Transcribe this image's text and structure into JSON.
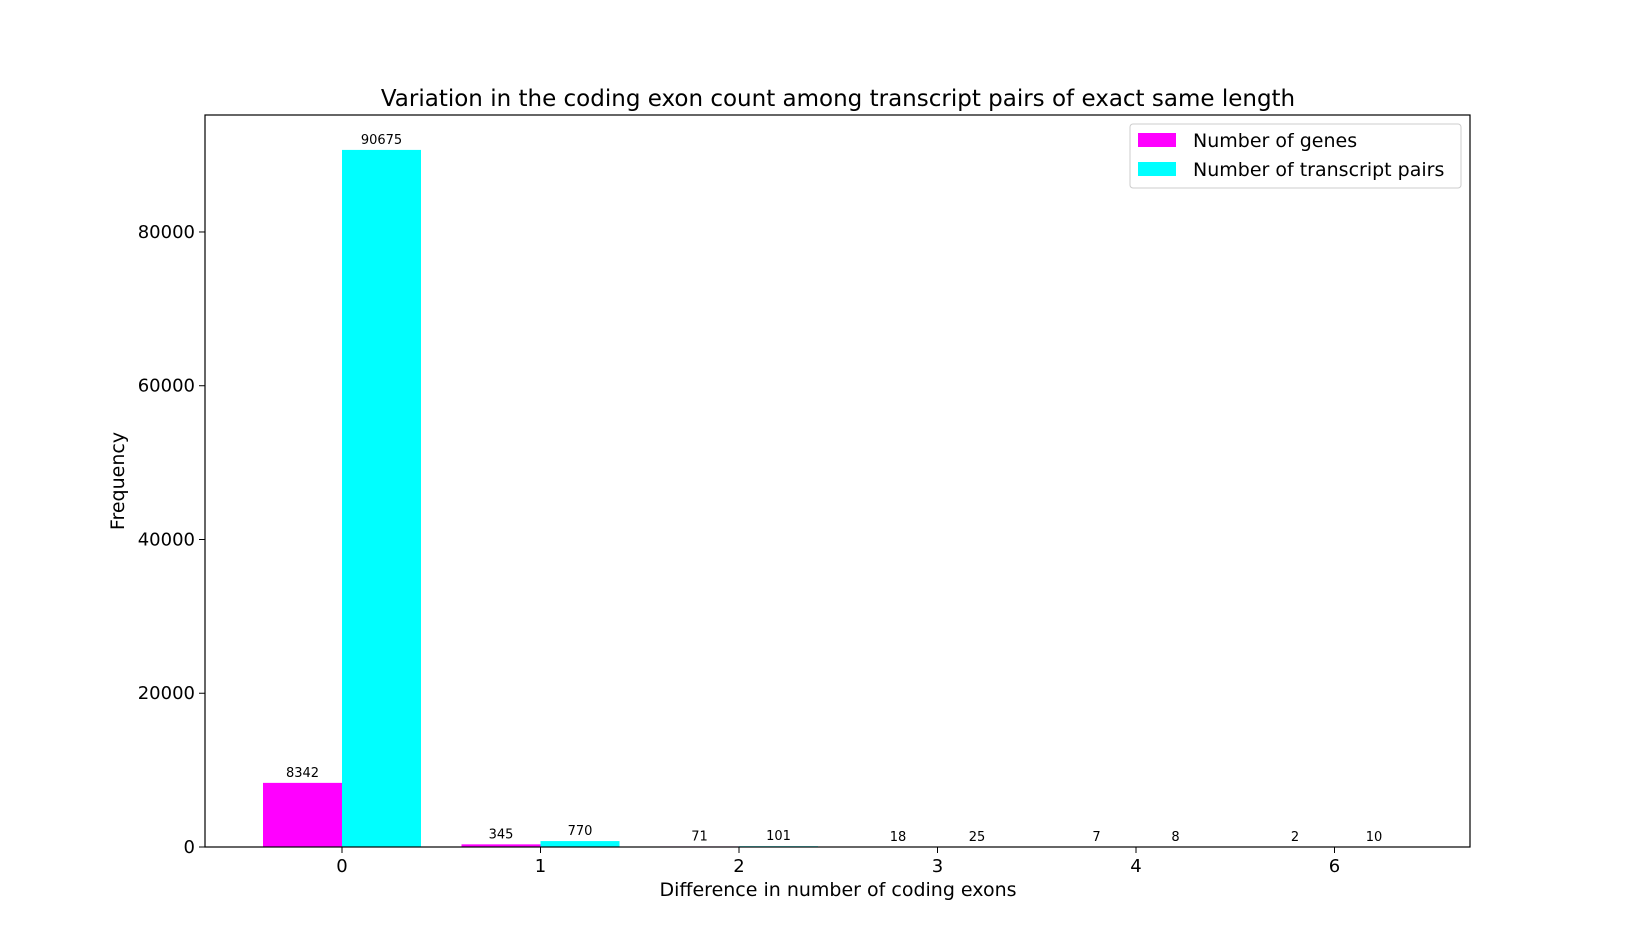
{
  "chart_data": {
    "type": "bar",
    "title": "Variation in the coding exon count among transcript pairs of exact same length",
    "xlabel": "Difference in number of coding exons",
    "ylabel": "Frequency",
    "categories": [
      "0",
      "1",
      "2",
      "3",
      "4",
      "6"
    ],
    "series": [
      {
        "name": "Number of genes",
        "color": "#ff00ff",
        "values": [
          8342,
          345,
          71,
          18,
          7,
          2
        ]
      },
      {
        "name": "Number of transcript pairs",
        "color": "#00ffff",
        "values": [
          90675,
          770,
          101,
          25,
          8,
          10
        ]
      }
    ],
    "ylim": [
      0,
      95216
    ],
    "yticks": [
      0,
      20000,
      40000,
      60000,
      80000
    ],
    "grid": false,
    "legend_position": "top-right"
  }
}
